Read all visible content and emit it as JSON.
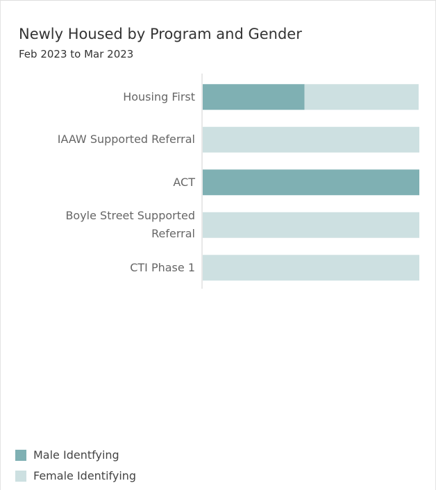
{
  "chart_data": {
    "type": "bar",
    "orientation": "horizontal",
    "stacked": true,
    "title": "Newly Housed by Program and Gender",
    "subtitle": "Feb 2023 to Mar 2023",
    "categories": [
      "Housing First",
      "IAAW Supported Referral",
      "ACT",
      "Boyle Street Supported Referral",
      "CTI Phase 1"
    ],
    "series": [
      {
        "name": "Male Identfying",
        "color": "#7fb0b3",
        "values": [
          47,
          0,
          100,
          0,
          0
        ]
      },
      {
        "name": "Female Identifying",
        "color": "#cde0e1",
        "values": [
          53,
          100,
          0,
          100,
          100
        ]
      }
    ],
    "xlim": [
      0,
      100
    ],
    "legend": "bottom-left"
  }
}
